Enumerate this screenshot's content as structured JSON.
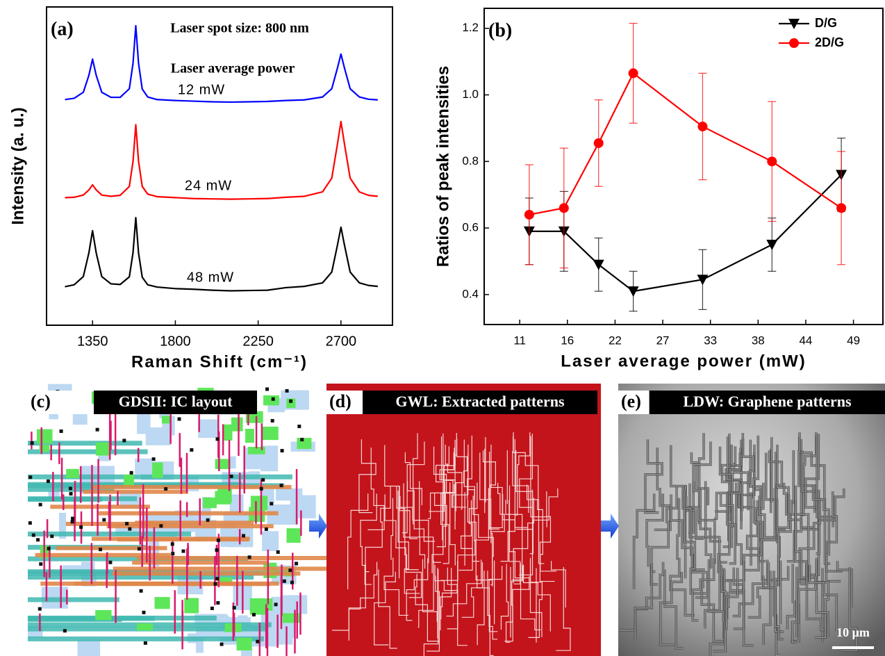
{
  "chart_data": [
    {
      "type": "line",
      "panel_label": "(a)",
      "annotations": [
        "Laser spot size: 800 nm",
        "Laser average power"
      ],
      "xlabel": "Raman Shift (cm⁻¹)",
      "ylabel": "Intensity (a. u.)",
      "xlim": [
        1100,
        2980
      ],
      "xticks": [
        1350,
        1800,
        2250,
        2700
      ],
      "ylim": [
        0,
        100
      ],
      "x": [
        1200,
        1250,
        1300,
        1330,
        1350,
        1370,
        1400,
        1450,
        1500,
        1550,
        1570,
        1585,
        1600,
        1620,
        1650,
        1700,
        1800,
        1900,
        2000,
        2100,
        2200,
        2300,
        2400,
        2500,
        2600,
        2650,
        2680,
        2700,
        2720,
        2750,
        2800,
        2850,
        2900
      ],
      "series": [
        {
          "name": "12 mW",
          "color": "#0000ff",
          "values": [
            70.9,
            71.3,
            73.2,
            78.5,
            83.6,
            78.5,
            73.2,
            71.6,
            71.6,
            74.3,
            82.3,
            94.1,
            82.3,
            74.2,
            71.7,
            70.9,
            70.6,
            70.4,
            70.2,
            70.1,
            70.2,
            70.3,
            70.6,
            70.8,
            71.7,
            74.3,
            80.6,
            85.2,
            80.6,
            74.3,
            71.7,
            71.0,
            70.8
          ]
        },
        {
          "name": "24 mW",
          "color": "#ff0000",
          "values": [
            40.1,
            40.2,
            40.9,
            42.5,
            44.1,
            42.5,
            40.9,
            40.5,
            40.8,
            43.6,
            51.5,
            63.0,
            51.5,
            43.6,
            41.2,
            40.4,
            40.1,
            39.8,
            39.7,
            39.6,
            39.7,
            39.8,
            40.2,
            40.5,
            41.9,
            46.2,
            56.6,
            64.0,
            56.6,
            46.2,
            41.9,
            40.8,
            40.5
          ]
        },
        {
          "name": "48 mW",
          "color": "#000000",
          "values": [
            12.1,
            12.7,
            15.3,
            22.7,
            29.7,
            22.7,
            15.3,
            13.0,
            12.8,
            15.2,
            22.8,
            33.8,
            22.7,
            15.1,
            12.7,
            12.0,
            11.5,
            11.3,
            11.0,
            10.8,
            10.9,
            11.0,
            11.8,
            12.2,
            13.3,
            16.7,
            24.9,
            30.8,
            24.9,
            16.7,
            13.3,
            12.5,
            12.2
          ]
        }
      ]
    },
    {
      "type": "line",
      "panel_label": "(b)",
      "xlabel": "Laser average power  (mW)",
      "ylabel": "Ratios of peak intensities",
      "xlim": [
        6.8,
        52.8
      ],
      "ylim": [
        0.31,
        1.26
      ],
      "xticks": [
        {
          "value": 10.9,
          "label": "11"
        },
        {
          "value": 16.4,
          "label": "16"
        },
        {
          "value": 21.9,
          "label": "22"
        },
        {
          "value": 27.4,
          "label": "27"
        },
        {
          "value": 32.9,
          "label": "33"
        },
        {
          "value": 38.4,
          "label": "38"
        },
        {
          "value": 43.9,
          "label": "44"
        },
        {
          "value": 49.4,
          "label": "49"
        }
      ],
      "yticks": [
        0.4,
        0.6,
        0.8,
        {
          "value": 1,
          "label": "1.0"
        },
        1.2
      ],
      "legend": "upper right",
      "x": [
        12,
        16,
        20,
        24,
        32,
        40,
        48
      ],
      "series": [
        {
          "name": "D/G",
          "color": "#000000",
          "marker": "triangle-down",
          "values": [
            0.59,
            0.59,
            0.49,
            0.41,
            0.445,
            0.55,
            0.76
          ],
          "errors": [
            0.1,
            0.12,
            0.08,
            0.06,
            0.09,
            0.08,
            0.11
          ]
        },
        {
          "name": "2D/G",
          "color": "#ff0000",
          "marker": "circle",
          "values": [
            0.64,
            0.66,
            0.855,
            1.065,
            0.905,
            0.8,
            0.66
          ],
          "errors": [
            0.15,
            0.18,
            0.13,
            0.15,
            0.16,
            0.18,
            0.17
          ]
        }
      ]
    }
  ],
  "panels": [
    {
      "label": "(c)",
      "title": "GDSII: IC layout"
    },
    {
      "label": "(d)",
      "title": "GWL: Extracted patterns"
    },
    {
      "label": "(e)",
      "title": "LDW: Graphene patterns",
      "scale_bar": "10 μm"
    }
  ]
}
